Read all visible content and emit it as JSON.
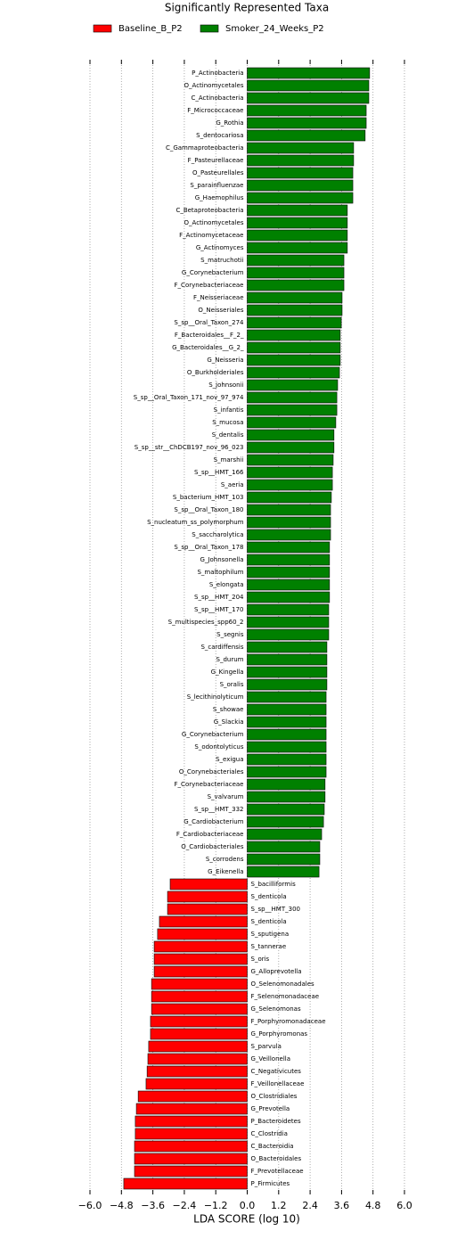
{
  "chart_data": {
    "type": "bar",
    "orientation": "horizontal",
    "title": "Significantly Represented Taxa",
    "xlabel": "LDA SCORE (log 10)",
    "xlim": [
      -6,
      6
    ],
    "xticks": [
      {
        "value": -6,
        "label": "−6.0"
      },
      {
        "value": -4.8,
        "label": "−4.8"
      },
      {
        "value": -3.6,
        "label": "−3.6"
      },
      {
        "value": -2.4,
        "label": "−2.4"
      },
      {
        "value": -1.2,
        "label": "−1.2"
      },
      {
        "value": 0,
        "label": "0.0"
      },
      {
        "value": 1.2,
        "label": "1.2"
      },
      {
        "value": 2.4,
        "label": "2.4"
      },
      {
        "value": 3.6,
        "label": "3.6"
      },
      {
        "value": 4.8,
        "label": "4.8"
      },
      {
        "value": 6,
        "label": "6.0"
      }
    ],
    "grid": true,
    "series": [
      {
        "name": "Baseline_B_P2",
        "color": "#ff0000",
        "categories": [],
        "values": []
      },
      {
        "name": "Smoker_24_Weeks_P2",
        "color": "#008000",
        "categories": [
          "P_Actinobacteria",
          "O_Actinomycetales",
          "C_Actinobacteria",
          "F_Micrococcaceae",
          "G_Rothia",
          "S_dentocariosa",
          "C_Gammaproteobacteria",
          "F_Pasteurellaceae",
          "O_Pasteurellales",
          "S_parainfluenzae",
          "G_Haemophilus",
          "C_Betaproteobacteria",
          "O_Actinomycetales",
          "F_Actinomycetaceae",
          "G_Actinomyces",
          "S_matruchotii",
          "G_Corynebacterium",
          "F_Corynebacteriaceae",
          "F_Neisseriaceae",
          "O_Neisseriales",
          "S_sp__Oral_Taxon_274",
          "F_Bacteroidales__F_2_",
          "G_Bacteroidales__G_2_",
          "G_Neisseria",
          "O_Burkholderiales",
          "S_johnsonii",
          "S_sp__Oral_Taxon_171_nov_97_974",
          "S_infantis",
          "S_mucosa",
          "S_dentalis",
          "S_sp__str__ChDCB197_nov_96_023",
          "S_marshii",
          "S_sp__HMT_166",
          "S_aeria",
          "S_bacterium_HMT_103",
          "S_sp__Oral_Taxon_180",
          "S_nucleatum_ss_polymorphum",
          "S_saccharolytica",
          "S_sp__Oral_Taxon_178",
          "G_Johnsonella",
          "S_maltophilum",
          "S_elongata",
          "S_sp__HMT_204",
          "S_sp__HMT_170",
          "S_multispecies_spp60_2",
          "S_segnis",
          "S_cardiffensis",
          "S_durum",
          "G_Kingella",
          "S_oralis",
          "S_lecithinolyticum",
          "S_showae",
          "G_Slackia",
          "G_Corynebacterium",
          "S_odontolyticus",
          "S_exigua",
          "O_Corynebacteriales",
          "F_Corynebacteriaceae",
          "S_valvarum",
          "S_sp__HMT_332",
          "G_Cardiobacterium",
          "F_Cardiobacteriaceae",
          "O_Cardiobacteriales",
          "S_corrodens",
          "G_Eikenella"
        ],
        "values": [
          4.67,
          4.64,
          4.64,
          4.54,
          4.54,
          4.5,
          4.06,
          4.06,
          4.03,
          4.03,
          4.03,
          3.82,
          3.82,
          3.82,
          3.82,
          3.69,
          3.69,
          3.69,
          3.62,
          3.62,
          3.59,
          3.55,
          3.55,
          3.55,
          3.52,
          3.45,
          3.42,
          3.42,
          3.38,
          3.31,
          3.31,
          3.28,
          3.25,
          3.25,
          3.21,
          3.18,
          3.18,
          3.18,
          3.14,
          3.14,
          3.14,
          3.14,
          3.14,
          3.11,
          3.11,
          3.11,
          3.04,
          3.04,
          3.04,
          3.04,
          3.01,
          3.01,
          3.01,
          3.01,
          3.01,
          3.01,
          3.01,
          2.97,
          2.97,
          2.94,
          2.91,
          2.84,
          2.77,
          2.77,
          2.74
        ]
      },
      {
        "name": "Baseline_B_P2",
        "color": "#ff0000",
        "categories": [
          "S_bacilliformis",
          "S_denticola",
          "S_sp__HMT_300",
          "S_denticola",
          "S_sputigena",
          "S_tannerae",
          "S_oris",
          "G_Alloprevotella",
          "O_Selenomonadales",
          "F_Selenomonadaceae",
          "G_Selenomonas",
          "F_Porphyromonadaceae",
          "G_Porphyromonas",
          "S_parvula",
          "G_Veillonella",
          "C_Negativicutes",
          "F_Veillonellaceae",
          "O_Clostridiales",
          "G_Prevotella",
          "P_Bacteroidetes",
          "C_Clostridia",
          "C_Bacteroidia",
          "O_Bacteroidales",
          "F_Prevotellaceae",
          "P_Firmicutes"
        ],
        "values": [
          -2.94,
          -3.04,
          -3.04,
          -3.35,
          -3.42,
          -3.55,
          -3.55,
          -3.55,
          -3.65,
          -3.65,
          -3.65,
          -3.69,
          -3.69,
          -3.76,
          -3.79,
          -3.82,
          -3.86,
          -4.16,
          -4.23,
          -4.27,
          -4.27,
          -4.3,
          -4.3,
          -4.3,
          -4.71
        ]
      }
    ]
  }
}
